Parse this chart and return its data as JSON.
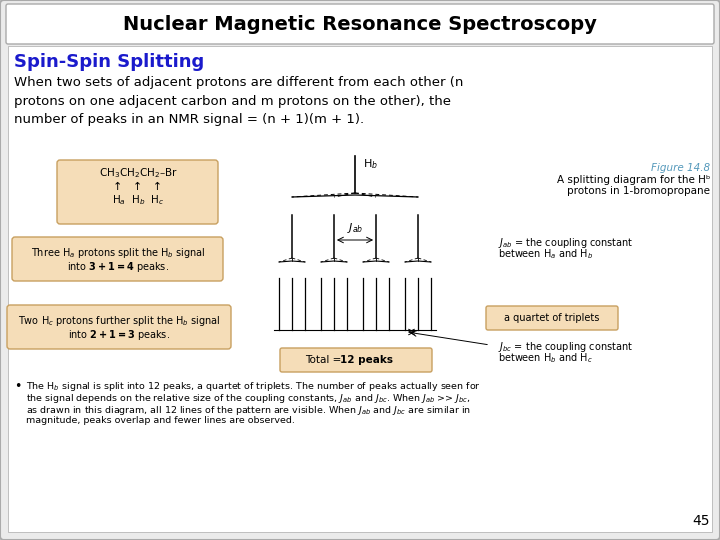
{
  "title": "Nuclear Magnetic Resonance Spectroscopy",
  "subtitle": "Spin-Spin Splitting",
  "body_text": "When two sets of adjacent protons are different from each other (n\nprotons on one adjacent carbon and m protons on the other), the\nnumber of peaks in an NMR signal = (n + 1)(m + 1).",
  "figure_label": "Figure 14.8",
  "figure_caption": "A splitting diagram for the Hᵇ\nprotons in 1-bromopropane",
  "label_quartet": "a quartet of triplets",
  "label_jab_text": "Jₐᵇ = the coupling constant\nbetween Hₐ and Hᵇ",
  "label_jbc_text": "JᵇᲜ = the coupling constant\nbetween Hᵇ and HᲜ",
  "bullet_text": "The Hᵇ signal is split into 12 peaks, a quartet of triplets. The number of peaks actually seen for\nthe signal depends on the relative size of the coupling constants, Jₐᵇ and JᵇᲜ. When Jₐᵇ >> JᵇᲜ,\nas drawn in this diagram, all 12 lines of the pattern are visible. When Jₐᵇ and JᵇᲜ are similar in\nmagnitude, peaks overlap and fewer lines are observed.",
  "page_number": "45",
  "bg_color": "#ebebeb",
  "title_bg": "#ffffff",
  "body_bg": "#ffffff",
  "subtitle_color": "#1a1acc",
  "box_fill": "#f5ddb8",
  "box_edge": "#c8a060"
}
